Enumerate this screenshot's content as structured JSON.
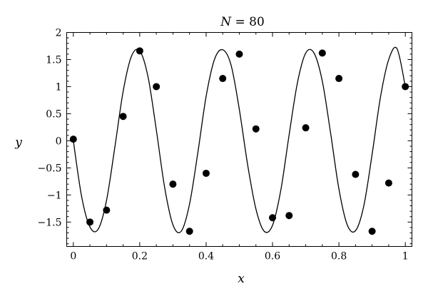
{
  "chart_data": {
    "type": "line",
    "title_var": "N",
    "title_rest": " = 80",
    "xlabel": "x",
    "ylabel": "y",
    "xlim": [
      -0.02,
      1.02
    ],
    "ylim": [
      -1.95,
      2.0
    ],
    "grid": false,
    "xticks": [
      0,
      0.2,
      0.4,
      0.6,
      0.8,
      1
    ],
    "xtick_labels": [
      "0",
      "0.2",
      "0.4",
      "0.6",
      "0.8",
      "1"
    ],
    "yticks": [
      -1.5,
      -1,
      -0.5,
      0,
      0.5,
      1,
      1.5,
      2
    ],
    "ytick_labels": [
      "−1.5",
      "−1",
      "−0.5",
      "0",
      "0.5",
      "1",
      "1.5",
      "2"
    ],
    "series": [
      {
        "kind": "curve",
        "x": [
          0.0,
          0.025,
          0.05,
          0.075,
          0.1,
          0.125,
          0.15,
          0.175,
          0.2,
          0.225,
          0.25,
          0.275,
          0.3,
          0.325,
          0.35,
          0.375,
          0.4,
          0.425,
          0.45,
          0.475,
          0.5,
          0.525,
          0.55,
          0.575,
          0.6,
          0.625,
          0.65,
          0.675,
          0.7,
          0.725,
          0.75,
          0.775,
          0.8,
          0.825,
          0.85,
          0.875,
          0.9,
          0.925,
          0.95,
          0.975,
          1.0
        ],
        "y": [
          0.0,
          -1.03,
          -1.59,
          -1.63,
          -1.1,
          -0.12,
          0.91,
          1.56,
          1.66,
          1.18,
          0.2,
          -0.86,
          -1.55,
          -1.67,
          -1.17,
          -0.22,
          0.82,
          1.5,
          1.68,
          1.4,
          0.58,
          -0.44,
          -1.26,
          -1.67,
          -1.56,
          -0.91,
          0.11,
          1.07,
          1.62,
          1.62,
          1.1,
          0.14,
          -0.89,
          -1.55,
          -1.66,
          -1.2,
          -0.25,
          0.8,
          1.5,
          1.7,
          1.0
        ]
      },
      {
        "kind": "points",
        "x": [
          0.0,
          0.05,
          0.1,
          0.15,
          0.2,
          0.25,
          0.3,
          0.35,
          0.4,
          0.45,
          0.5,
          0.55,
          0.6,
          0.65,
          0.7,
          0.75,
          0.8,
          0.85,
          0.9,
          0.95,
          1.0
        ],
        "y": [
          0.03,
          -1.5,
          -1.28,
          0.45,
          1.66,
          1.0,
          -0.8,
          -1.67,
          -0.6,
          1.15,
          1.6,
          0.22,
          -1.42,
          -1.38,
          0.24,
          1.62,
          1.15,
          -0.62,
          -1.67,
          -0.78,
          1.0
        ]
      }
    ]
  }
}
